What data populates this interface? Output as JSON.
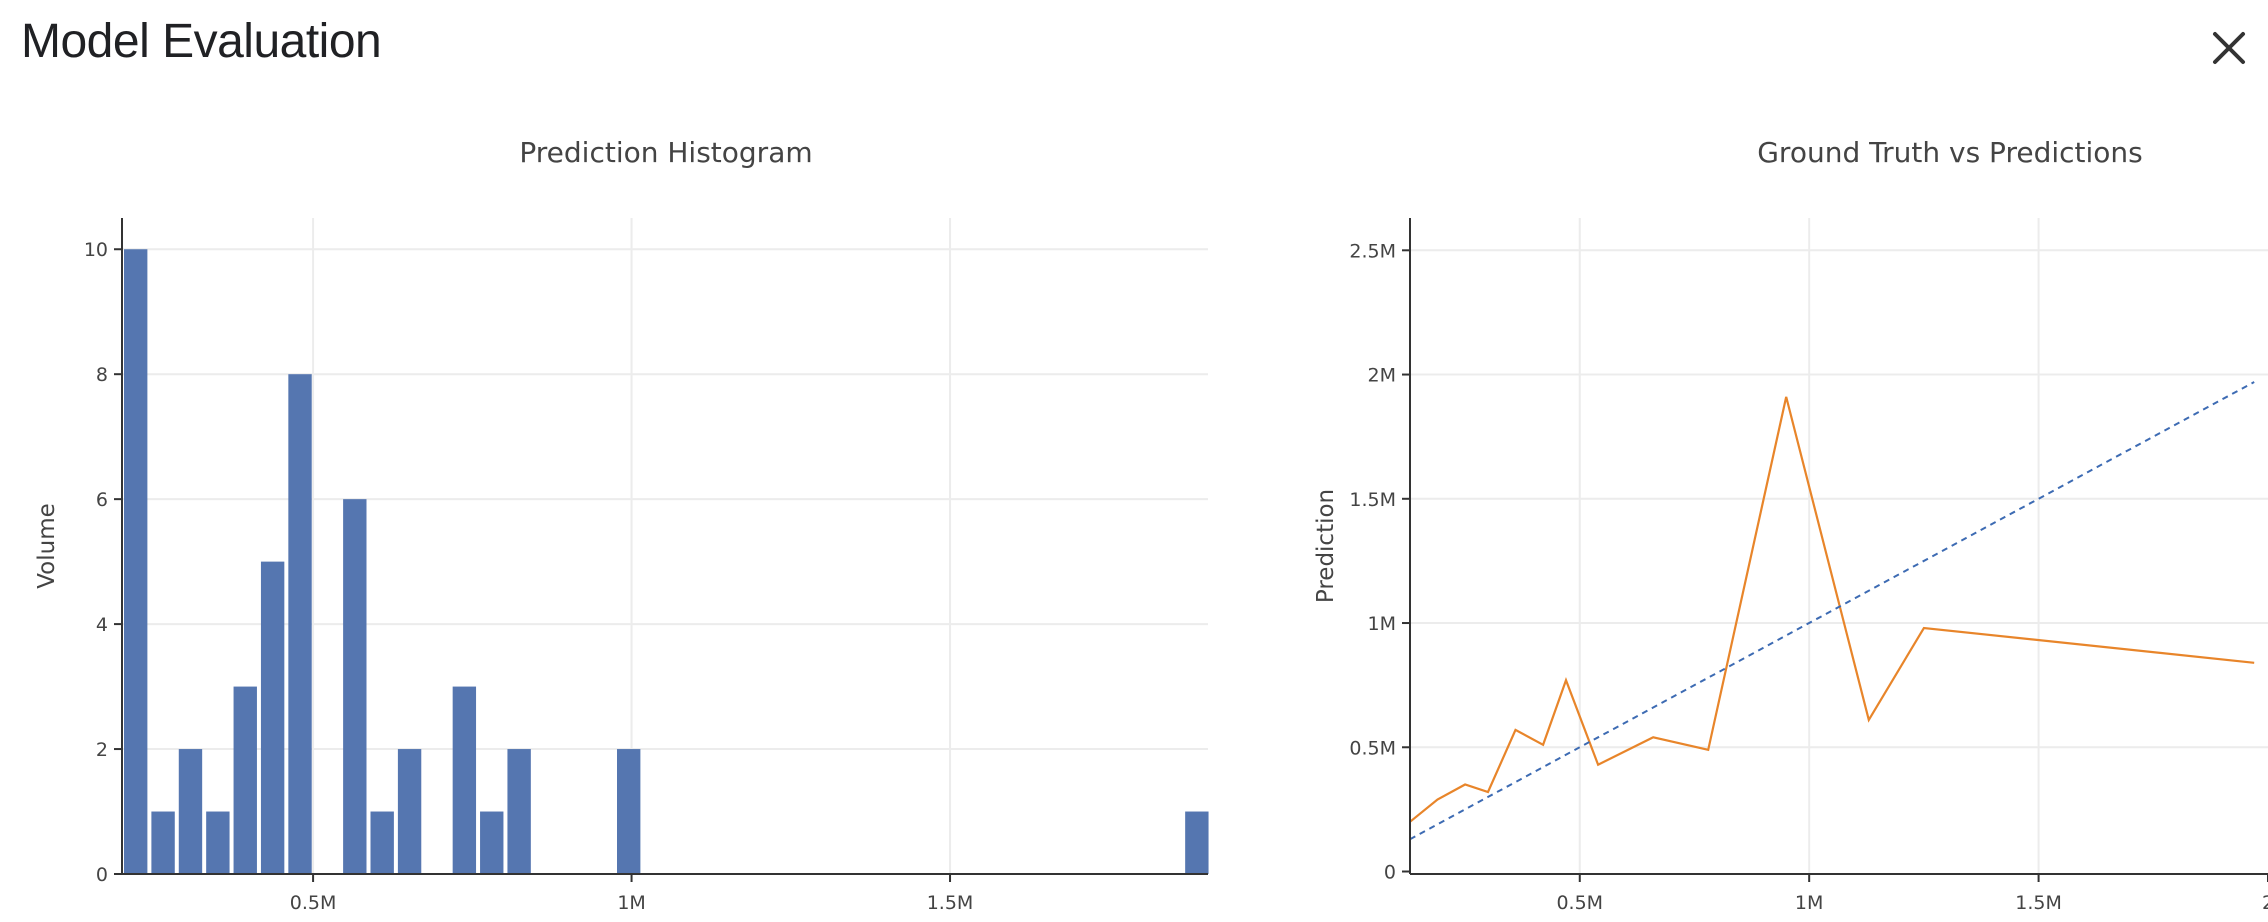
{
  "header": {
    "title": "Model Evaluation",
    "close_icon": "close-icon"
  },
  "colors": {
    "bar": "#5576b0",
    "prediction_line": "#e8852a",
    "reference_line": "#3d6bb3",
    "grid": "#ececec",
    "axis": "#333333"
  },
  "chart_data": [
    {
      "type": "bar",
      "title": "Prediction Histogram",
      "xlabel": "",
      "ylabel": "Volume",
      "x_ticks": [
        0.5,
        1.0,
        1.5
      ],
      "x_tick_labels": [
        "0.5M",
        "1M",
        "1.5M"
      ],
      "y_ticks": [
        0,
        2,
        4,
        6,
        8,
        10
      ],
      "y_tick_labels": [
        "0",
        "2",
        "4",
        "6",
        "8",
        "10"
      ],
      "xlim": [
        0.2,
        1.905
      ],
      "ylim": [
        0,
        10.5
      ],
      "grid": true,
      "bin_width": 0.043,
      "bins": [
        {
          "x": 0.2215,
          "value": 10
        },
        {
          "x": 0.2645,
          "value": 1
        },
        {
          "x": 0.3075,
          "value": 2
        },
        {
          "x": 0.3505,
          "value": 1
        },
        {
          "x": 0.3935,
          "value": 3
        },
        {
          "x": 0.4365,
          "value": 5
        },
        {
          "x": 0.4795,
          "value": 8
        },
        {
          "x": 0.5655,
          "value": 6
        },
        {
          "x": 0.6085,
          "value": 1
        },
        {
          "x": 0.6515,
          "value": 2
        },
        {
          "x": 0.7375,
          "value": 3
        },
        {
          "x": 0.7805,
          "value": 1
        },
        {
          "x": 0.8235,
          "value": 2
        },
        {
          "x": 0.9955,
          "value": 2
        },
        {
          "x": 1.8875,
          "value": 1
        }
      ]
    },
    {
      "type": "line",
      "title": "Ground Truth vs Predictions",
      "xlabel": "",
      "ylabel": "Prediction",
      "x_ticks": [
        0.5,
        1.0,
        1.5,
        2.0
      ],
      "x_tick_labels": [
        "0.5M",
        "1M",
        "1.5M",
        "2"
      ],
      "y_ticks": [
        0,
        0.5,
        1.0,
        1.5,
        2.0,
        2.5
      ],
      "y_tick_labels": [
        "0",
        "0.5M",
        "1M",
        "1.5M",
        "2M",
        "2.5M"
      ],
      "xlim": [
        0.13,
        2.0
      ],
      "ylim": [
        -0.01,
        2.63
      ],
      "grid": true,
      "series": [
        {
          "style": "solid",
          "x": [
            0.13,
            0.19,
            0.25,
            0.3,
            0.36,
            0.42,
            0.47,
            0.54,
            0.66,
            0.78,
            0.95,
            1.13,
            1.25,
            1.97
          ],
          "y": [
            0.2,
            0.29,
            0.35,
            0.32,
            0.57,
            0.51,
            0.77,
            0.43,
            0.54,
            0.49,
            1.91,
            0.61,
            0.98,
            0.84
          ]
        },
        {
          "style": "dashed",
          "x": [
            0.13,
            1.97
          ],
          "y": [
            0.13,
            1.97
          ]
        }
      ]
    }
  ]
}
